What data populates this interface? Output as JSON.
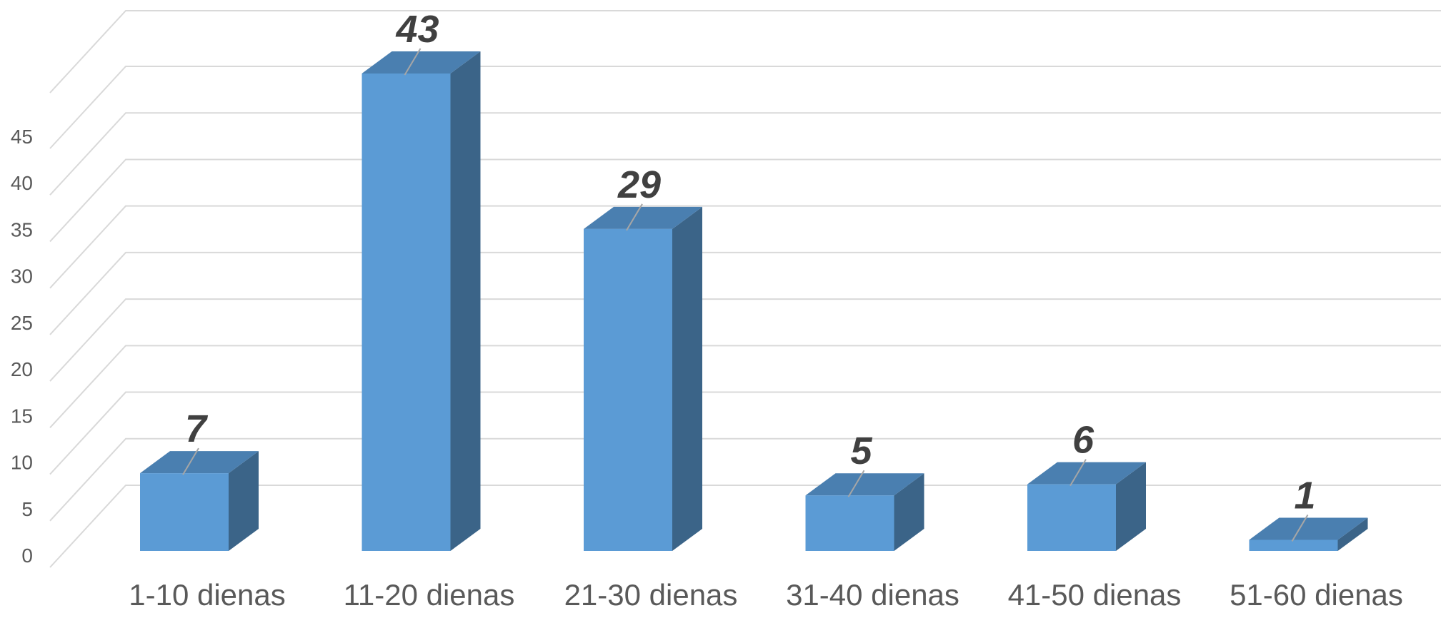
{
  "chart_data": {
    "type": "bar",
    "style": "3d-column",
    "categories": [
      "1-10 dienas",
      "11-20 dienas",
      "21-30 dienas",
      "31-40 dienas",
      "41-50 dienas",
      "51-60 dienas"
    ],
    "values": [
      7,
      43,
      29,
      5,
      6,
      1
    ],
    "data_labels": [
      "7",
      "43",
      "29",
      "5",
      "6",
      "1"
    ],
    "ylim": [
      0,
      50
    ],
    "yticks": [
      0,
      5,
      10,
      15,
      20,
      25,
      30,
      35,
      40,
      45
    ],
    "ytick_labels": [
      "0",
      "5",
      "10",
      "15",
      "20",
      "25",
      "30",
      "35",
      "40",
      "45"
    ],
    "grid": true,
    "legend": "none",
    "colors": {
      "front": "#5b9bd5",
      "top": "#4a7fb0",
      "side": "#3b6488",
      "grid": "#d9d9d9",
      "text": "#595959",
      "label": "#404040"
    }
  }
}
